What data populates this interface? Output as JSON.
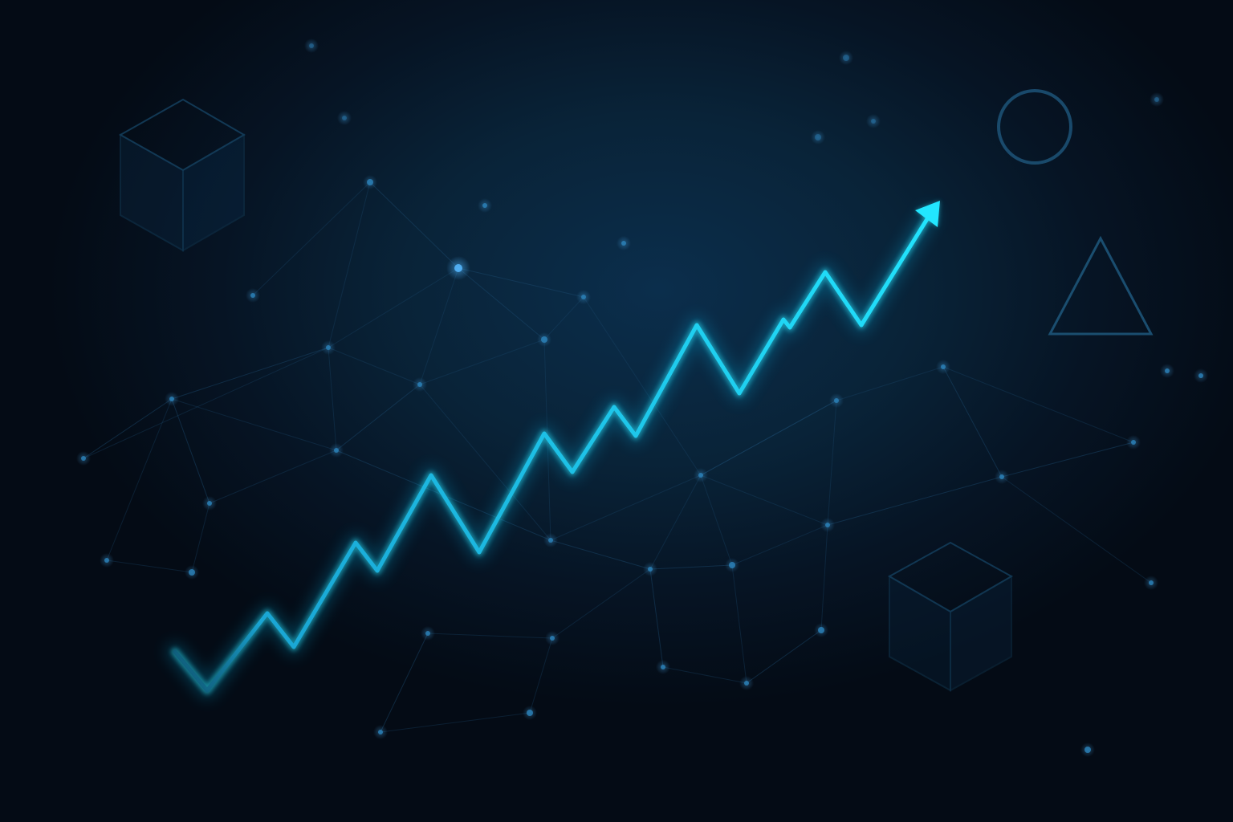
{
  "colors": {
    "background_dark": "#040b15",
    "background_mid": "#092338",
    "glow_line": "#22d8ff",
    "network_line": "#1c4b70",
    "network_node": "#2a7fb5",
    "shape_stroke": "#1d5478"
  },
  "trend": {
    "direction": "upward",
    "end_marker": "arrow"
  },
  "decorations": {
    "shapes": [
      "cube",
      "cube",
      "circle",
      "triangle"
    ],
    "background_motif": "network-of-connected-points"
  }
}
